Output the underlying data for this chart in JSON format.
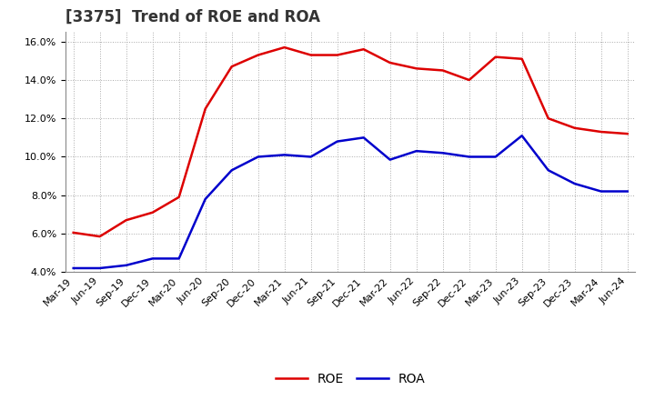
{
  "title": "[3375]  Trend of ROE and ROA",
  "labels": [
    "Mar-19",
    "Jun-19",
    "Sep-19",
    "Dec-19",
    "Mar-20",
    "Jun-20",
    "Sep-20",
    "Dec-20",
    "Mar-21",
    "Jun-21",
    "Sep-21",
    "Dec-21",
    "Mar-22",
    "Jun-22",
    "Sep-22",
    "Dec-22",
    "Mar-23",
    "Jun-23",
    "Sep-23",
    "Dec-23",
    "Mar-24",
    "Jun-24"
  ],
  "ROE": [
    6.05,
    5.85,
    6.7,
    7.1,
    7.9,
    12.5,
    14.7,
    15.3,
    15.7,
    15.3,
    15.3,
    15.6,
    14.9,
    14.6,
    14.5,
    14.0,
    15.2,
    15.1,
    12.0,
    11.5,
    11.3,
    11.2
  ],
  "ROA": [
    4.2,
    4.2,
    4.35,
    4.7,
    4.7,
    7.8,
    9.3,
    10.0,
    10.1,
    10.0,
    10.8,
    11.0,
    9.85,
    10.3,
    10.2,
    10.0,
    10.0,
    11.1,
    9.3,
    8.6,
    8.2,
    8.2
  ],
  "ROE_color": "#dd0000",
  "ROA_color": "#0000cc",
  "ylim_min": 4.0,
  "ylim_max": 16.5,
  "yticks": [
    4.0,
    6.0,
    8.0,
    10.0,
    12.0,
    14.0,
    16.0
  ],
  "background_color": "#ffffff",
  "plot_bg_color": "#ffffff",
  "grid_color": "#aaaaaa",
  "title_fontsize": 12,
  "legend_fontsize": 10,
  "tick_fontsize": 8,
  "line_width": 1.8
}
